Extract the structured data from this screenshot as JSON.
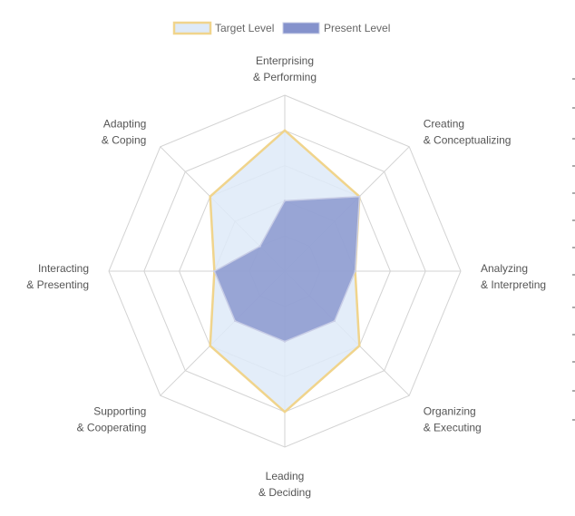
{
  "chart_data": {
    "type": "radar",
    "categories": [
      [
        "Enterprising",
        "& Performing"
      ],
      [
        "Creating",
        "& Conceptualizing"
      ],
      [
        "Analyzing",
        "& Interpreting"
      ],
      [
        "Organizing",
        "& Executing"
      ],
      [
        "Leading",
        "& Deciding"
      ],
      [
        "Supporting",
        "& Cooperating"
      ],
      [
        "Interacting",
        "& Presenting"
      ],
      [
        "Adapting",
        "& Coping"
      ]
    ],
    "series": [
      {
        "name": "Target Level",
        "values": [
          4,
          3,
          2,
          3,
          4,
          3,
          2,
          3
        ],
        "stroke": "#f0d48c",
        "fill": "#deeaf8",
        "fill_opacity": 0.85
      },
      {
        "name": "Present Level",
        "values": [
          2,
          3,
          2,
          2,
          2,
          2,
          2,
          1
        ],
        "stroke": "#c8cde6",
        "fill": "#8592cc",
        "fill_opacity": 0.8
      }
    ],
    "rlim": [
      0,
      5
    ],
    "ring_count": 5,
    "grid": true,
    "legend_position": "top-center",
    "grid_color": "#d3d3d3",
    "label_color": "#555555"
  }
}
